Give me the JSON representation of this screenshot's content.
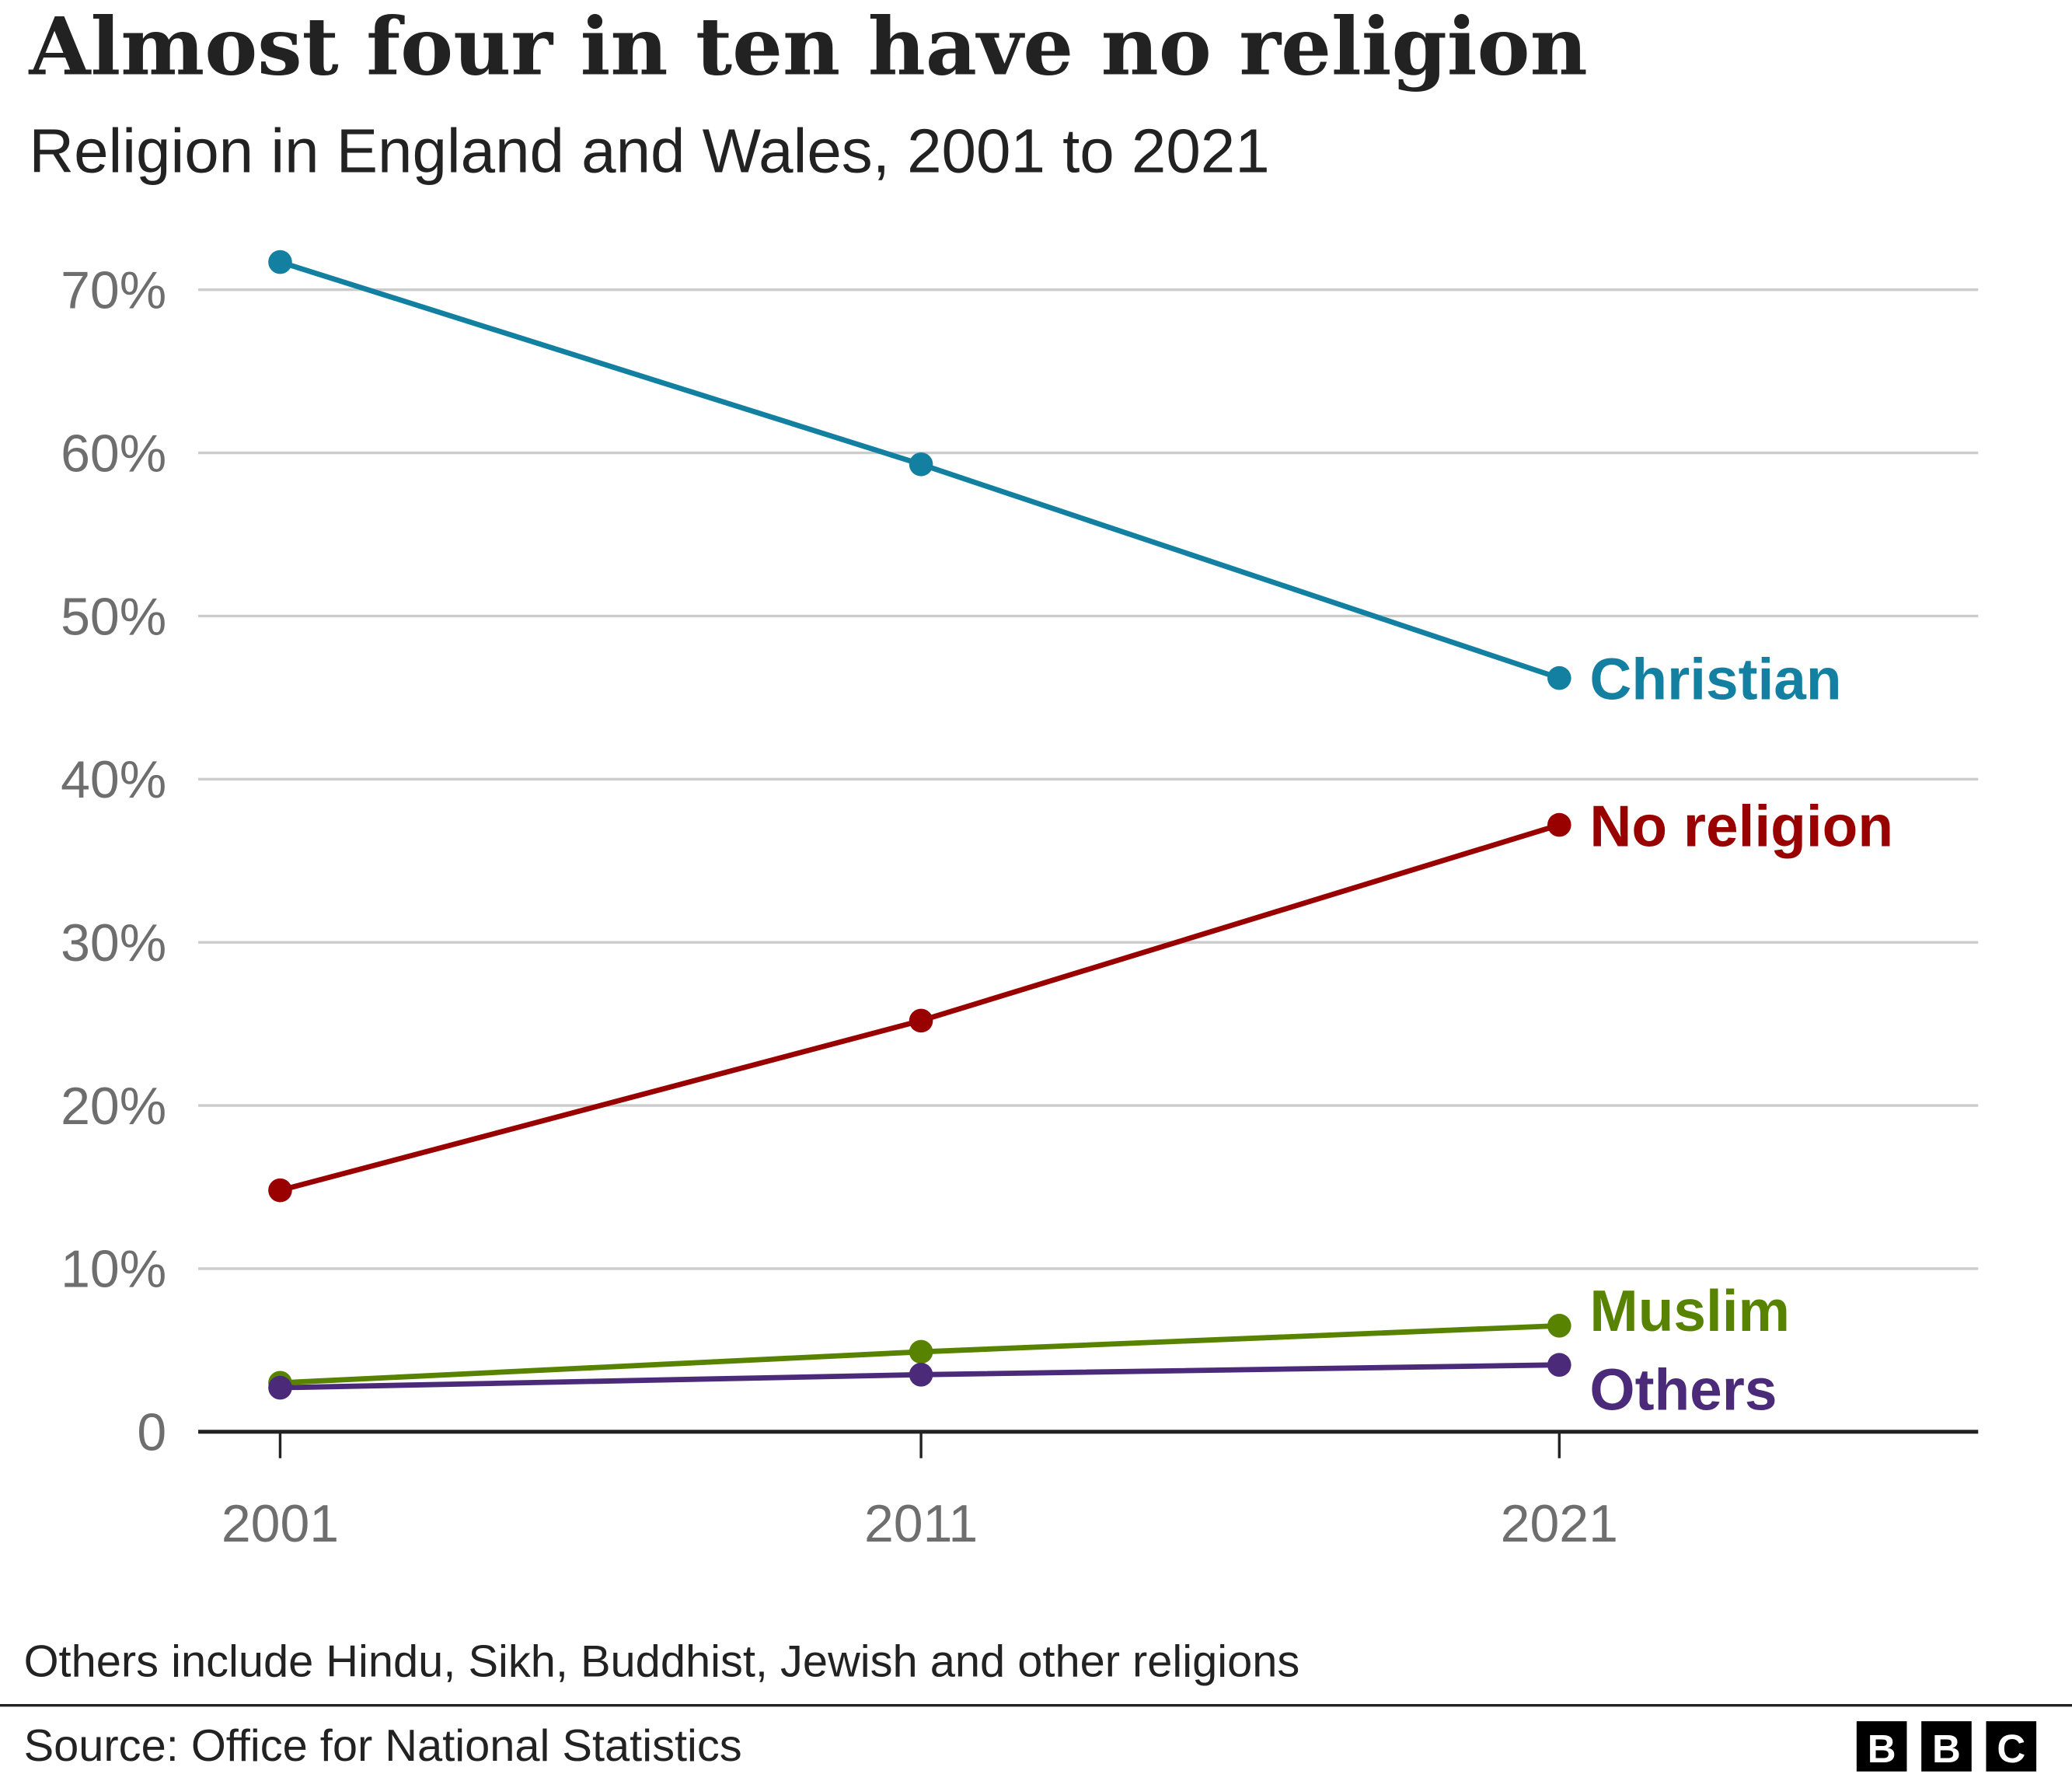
{
  "title": "Almost four in ten have no religion",
  "subtitle": "Religion in England and Wales, 2001 to 2021",
  "note": "Others include Hindu, Sikh, Buddhist, Jewish and other religions",
  "source": "Source: Office for National Statistics",
  "logo": "BBC",
  "chart_data": {
    "type": "line",
    "x": [
      "2001",
      "2011",
      "2021"
    ],
    "ylim": [
      0,
      70
    ],
    "yticks": [
      0,
      10,
      20,
      30,
      40,
      50,
      60,
      70
    ],
    "ytick_labels": [
      "0",
      "10%",
      "20%",
      "30%",
      "40%",
      "50%",
      "60%",
      "70%"
    ],
    "grid": true,
    "series": [
      {
        "name": "Christian",
        "values": [
          71.7,
          59.3,
          46.2
        ],
        "color": "#1380a1"
      },
      {
        "name": "No religion",
        "values": [
          14.8,
          25.2,
          37.2
        ],
        "color": "#990000"
      },
      {
        "name": "Muslim",
        "values": [
          3.0,
          4.9,
          6.5
        ],
        "color": "#588300"
      },
      {
        "name": "Others",
        "values": [
          2.7,
          3.5,
          4.1
        ],
        "color": "#4b2a7a"
      }
    ]
  }
}
